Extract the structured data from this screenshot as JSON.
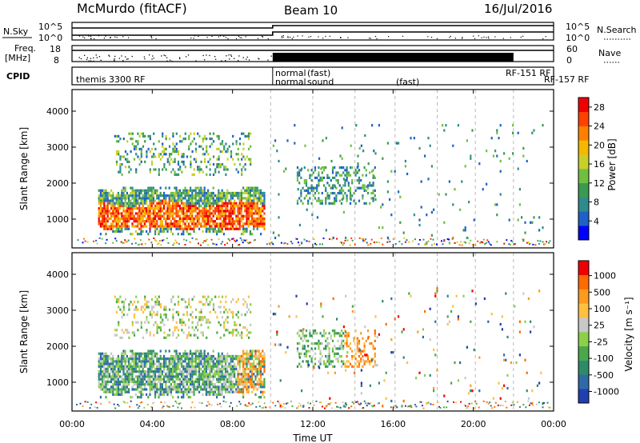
{
  "header": {
    "station": "McMurdo (fitACF)",
    "beam": "Beam 10",
    "date": "16/Jul/2016"
  },
  "status_panels": {
    "nsky_label": "N.Sky",
    "nsearch_label": "N.Search",
    "nsky_ticks": [
      "10^5",
      "10^0"
    ],
    "nsearch_ticks": [
      "10^5",
      "10^0"
    ],
    "freq_label_1": "Freq.",
    "freq_label_2": "[MHz]",
    "freq_ticks": [
      "18",
      "8"
    ],
    "nave_label": "Nave",
    "nave_ticks": [
      "60",
      "0"
    ],
    "cpid_label": "CPID",
    "cpid_segments": [
      "themis 3300 RF",
      "normal",
      "normal",
      "(fast)",
      "sound",
      "(fast)",
      "RF-151 RF",
      "RF-157 RF"
    ]
  },
  "chart_data": [
    {
      "type": "heatmap",
      "name": "power",
      "ylabel": "Slant Range [km]",
      "ylim": [
        200,
        4600
      ],
      "y_ticks": [
        1000,
        2000,
        3000,
        4000
      ],
      "x_ticks": [
        "00:00",
        "04:00",
        "08:00",
        "12:00",
        "16:00",
        "20:00",
        "00:00"
      ],
      "xlim_hours": [
        0,
        24
      ],
      "colorbar": {
        "label": "Power [dB]",
        "ticks": [
          4,
          8,
          12,
          16,
          20,
          24,
          28
        ],
        "colors": [
          "#0000ff",
          "#1e62c8",
          "#2e8b8b",
          "#3a9a52",
          "#70c040",
          "#c8d028",
          "#f5b800",
          "#ff8000",
          "#ff4000",
          "#ee0000"
        ]
      },
      "echo_regions": [
        {
          "t0": 1.3,
          "t1": 9.6,
          "r0": 550,
          "r1": 1850,
          "core_r0": 700,
          "core_r1": 1400,
          "density": 0.85
        },
        {
          "t0": 2.1,
          "t1": 8.9,
          "r0": 2200,
          "r1": 3400,
          "density": 0.22
        },
        {
          "t0": 11.2,
          "t1": 15.1,
          "r0": 1400,
          "r1": 2400,
          "density": 0.35
        },
        {
          "t0": 10.0,
          "t1": 23.5,
          "r0": 300,
          "r1": 3600,
          "density": 0.02
        }
      ]
    },
    {
      "type": "heatmap",
      "name": "velocity",
      "ylabel": "Slant Range [km]",
      "xlabel": "Time UT",
      "ylim": [
        200,
        4600
      ],
      "y_ticks": [
        1000,
        2000,
        3000,
        4000
      ],
      "x_ticks": [
        "00:00",
        "04:00",
        "08:00",
        "12:00",
        "16:00",
        "20:00",
        "00:00"
      ],
      "xlim_hours": [
        0,
        24
      ],
      "colorbar": {
        "label": "Velocity [m s⁻¹]",
        "ticks": [
          "1000",
          "500",
          "100",
          "25",
          "-25",
          "-100",
          "-500",
          "-1000"
        ],
        "colors": [
          "#2040b0",
          "#2e6aa8",
          "#2e8b6a",
          "#4aa84a",
          "#8cd04a",
          "#c8c8c8",
          "#ffc040",
          "#ff9a20",
          "#ff6a00",
          "#ee0000"
        ]
      },
      "echo_regions": [
        {
          "t0": 1.3,
          "t1": 9.6,
          "r0": 550,
          "r1": 1850,
          "density": 0.85
        },
        {
          "t0": 2.1,
          "t1": 8.9,
          "r0": 2200,
          "r1": 3400,
          "density": 0.22
        },
        {
          "t0": 11.2,
          "t1": 15.1,
          "r0": 1400,
          "r1": 2400,
          "density": 0.35
        },
        {
          "t0": 10.0,
          "t1": 23.5,
          "r0": 300,
          "r1": 3600,
          "density": 0.02
        }
      ]
    }
  ]
}
